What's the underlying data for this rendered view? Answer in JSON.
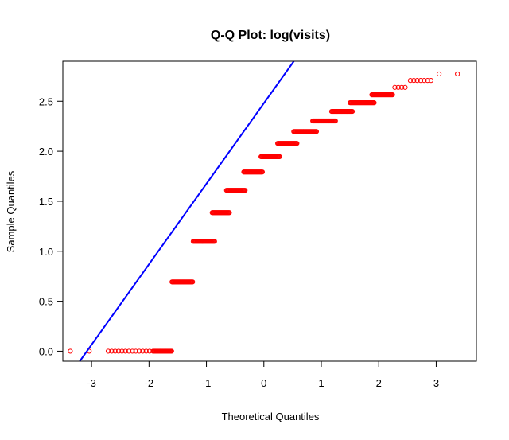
{
  "chart_data": {
    "type": "scatter",
    "title": "Q-Q Plot:  log(visits)",
    "xlabel": "Theoretical Quantiles",
    "ylabel": "Sample Quantiles",
    "xlim": [
      -3.5,
      3.7
    ],
    "ylim": [
      -0.1,
      2.9
    ],
    "x_ticks": [
      -3,
      -2,
      -1,
      0,
      1,
      2,
      3
    ],
    "x_tick_labels": [
      "-3",
      "-2",
      "-1",
      "0",
      "1",
      "2",
      "3"
    ],
    "y_ticks": [
      0.0,
      0.5,
      1.0,
      1.5,
      2.0,
      2.5
    ],
    "y_tick_labels": [
      "0.0",
      "0.5",
      "1.0",
      "1.5",
      "2.0",
      "2.5"
    ],
    "grid": false,
    "point_color": "#ff0000",
    "line_color": "#0000ff",
    "reference_line": {
      "slope": 0.805,
      "intercept": 2.48
    },
    "groups": [
      {
        "y": 0.0,
        "x_min": -3.37,
        "x_max": -1.6,
        "sparse_until": -1.95
      },
      {
        "y": 0.693,
        "x_min": -1.6,
        "x_max": -1.23
      },
      {
        "y": 1.099,
        "x_min": -1.23,
        "x_max": -0.85
      },
      {
        "y": 1.386,
        "x_min": -0.9,
        "x_max": -0.6
      },
      {
        "y": 1.609,
        "x_min": -0.65,
        "x_max": -0.32
      },
      {
        "y": 1.792,
        "x_min": -0.35,
        "x_max": -0.02
      },
      {
        "y": 1.946,
        "x_min": -0.05,
        "x_max": 0.28
      },
      {
        "y": 2.079,
        "x_min": 0.24,
        "x_max": 0.58
      },
      {
        "y": 2.197,
        "x_min": 0.52,
        "x_max": 0.92
      },
      {
        "y": 2.303,
        "x_min": 0.85,
        "x_max": 1.25
      },
      {
        "y": 2.398,
        "x_min": 1.18,
        "x_max": 1.55
      },
      {
        "y": 2.485,
        "x_min": 1.5,
        "x_max": 1.92
      },
      {
        "y": 2.565,
        "x_min": 1.88,
        "x_max": 2.25
      },
      {
        "y": 2.639,
        "x_min": 2.28,
        "x_max": 2.5,
        "sparse_until": 2.5
      },
      {
        "y": 2.708,
        "x_min": 2.55,
        "x_max": 2.92,
        "sparse_until": 2.92
      },
      {
        "y": 2.773,
        "x_min": 3.05,
        "x_max": 3.37,
        "sparse_until": 3.37,
        "points": [
          3.05,
          3.37
        ]
      }
    ]
  }
}
